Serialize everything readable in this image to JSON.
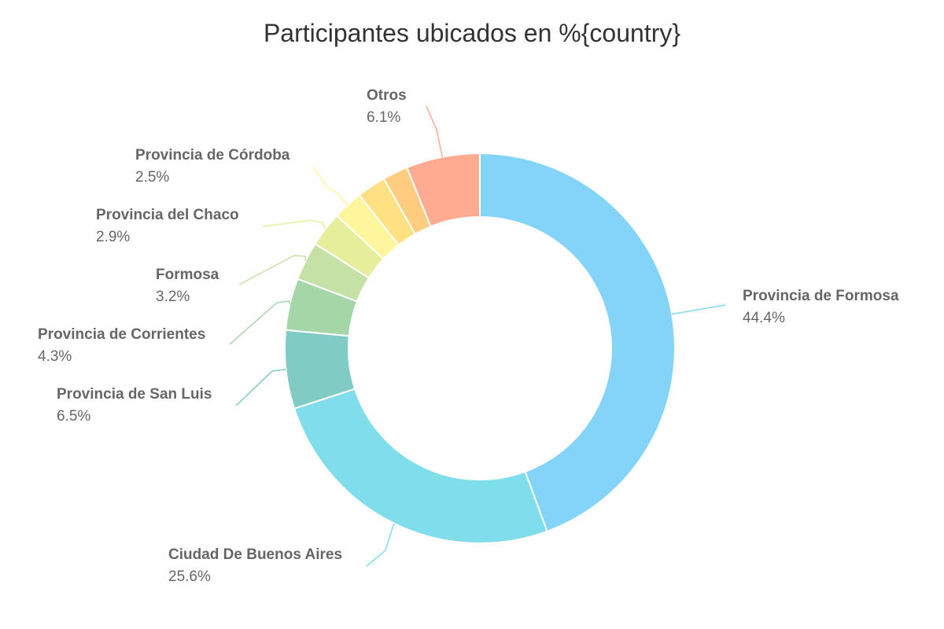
{
  "chart_data": {
    "type": "pie",
    "variant": "donut",
    "title": "Participantes ubicados en %{country}",
    "slices": [
      {
        "label": "Provincia de Formosa",
        "value": 44.4,
        "display": "44.4%",
        "color": "#84D4FA"
      },
      {
        "label": "Ciudad De Buenos Aires",
        "value": 25.6,
        "display": "25.6%",
        "color": "#80DEEA"
      },
      {
        "label": "Provincia de San Luis",
        "value": 6.5,
        "display": "6.5%",
        "color": "#80CBC4"
      },
      {
        "label": "Provincia de Corrientes",
        "value": 4.3,
        "display": "4.3%",
        "color": "#A5D6A7"
      },
      {
        "label": "Formosa",
        "value": 3.2,
        "display": "3.2%",
        "color": "#C5E1A5"
      },
      {
        "label": "Provincia del Chaco",
        "value": 2.9,
        "display": "2.9%",
        "color": "#E6EE9C"
      },
      {
        "label": "Provincia de Córdoba",
        "value": 2.5,
        "display": "2.5%",
        "color": "#FFF59D"
      },
      {
        "label": "",
        "value": 2.4,
        "display": "",
        "color": "#FFE082"
      },
      {
        "label": "",
        "value": 2.1,
        "display": "",
        "color": "#FFCC80"
      },
      {
        "label": "Otros",
        "value": 6.1,
        "display": "6.1%",
        "color": "#FFAB91"
      }
    ]
  }
}
